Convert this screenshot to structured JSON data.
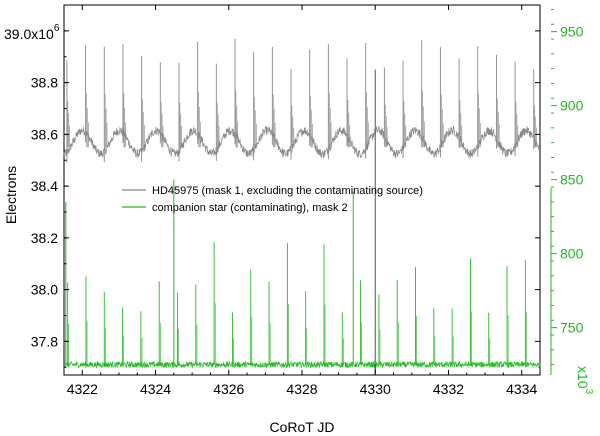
{
  "chart_data": {
    "type": "line",
    "xlabel": "CoRoT JD",
    "ylabel": "Electrons",
    "y_top_label_base": "39.0x10",
    "y_top_label_exp": "6",
    "right_axis_multiplier_base": "x10",
    "right_axis_multiplier_exp": "3",
    "xlim": [
      4321.5,
      4334.5
    ],
    "ylim_left": [
      37.67,
      39.1
    ],
    "ylim_right": [
      718,
      968
    ],
    "x_ticks": [
      4322,
      4324,
      4326,
      4328,
      4330,
      4332,
      4334
    ],
    "x_tick_labels": [
      "4322",
      "4324",
      "4326",
      "4328",
      "4330",
      "4332",
      "4334"
    ],
    "y_left_ticks": [
      37.8,
      38.0,
      38.2,
      38.4,
      38.6,
      38.8,
      39.0
    ],
    "y_left_tick_labels": [
      "37.8",
      "38.0",
      "38.2",
      "38.4",
      "38.6",
      "38.8",
      ""
    ],
    "y_right_ticks": [
      750,
      800,
      850,
      900,
      950
    ],
    "y_right_tick_labels": [
      "750",
      "800",
      "850",
      "900",
      "950"
    ],
    "series": [
      {
        "name": "HD45975 (mask 1, excluding the contaminating source)",
        "axis": "left",
        "color": "#888888",
        "baseline_mean": 38.57,
        "baseline_wave_amplitude": 0.045,
        "baseline_wave_period": 1.01,
        "spike_period": 0.51,
        "spike_top": [
          38.85,
          38.97
        ]
      },
      {
        "name": "companion star (contaminating), mask 2",
        "axis": "right",
        "color": "#22bb22",
        "baseline": 725,
        "spike_period": 0.5,
        "spike_height_range": [
          760,
          810
        ],
        "notable_peaks": [
          {
            "x": 4324.5,
            "y": 850
          },
          {
            "x": 4329.4,
            "y": 842
          },
          {
            "x": 4321.55,
            "y": 835
          }
        ]
      }
    ],
    "legend_position": "center-left",
    "grid": false
  }
}
